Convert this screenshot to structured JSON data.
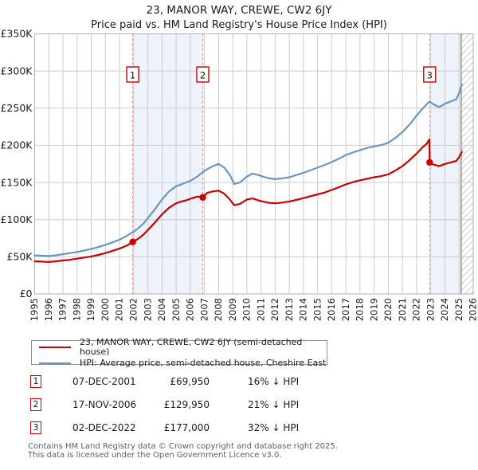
{
  "title": "23, MANOR WAY, CREWE, CW2 6JY",
  "subtitle": "Price paid vs. HM Land Registry's House Price Index (HPI)",
  "colors": {
    "property_line": "#cc0000",
    "hpi_line": "#6a96c6",
    "sale_dash": "#ee8888",
    "grid": "#cccccc",
    "plot_border": "#b0b0b0",
    "band_fill": "#edf2fb",
    "hatch_line": "#cccccc",
    "hatch_edge": "#909090",
    "flag_border": "#cc0000",
    "axis_text": "#1a1a1a",
    "footer_text": "#5f5f5f"
  },
  "chart_data": {
    "type": "line",
    "title": "23, MANOR WAY, CREWE, CW2 6JY",
    "subtitle": "Price paid vs. HM Land Registry's House Price Index (HPI)",
    "xlabel": "",
    "ylabel": "",
    "xlim": [
      1995,
      2026
    ],
    "ylim": [
      0,
      350000
    ],
    "grid": true,
    "legend_position": "below",
    "yticks": [
      0,
      50000,
      100000,
      150000,
      200000,
      250000,
      300000,
      350000
    ],
    "ytick_labels": [
      "£0",
      "£50K",
      "£100K",
      "£150K",
      "£200K",
      "£250K",
      "£300K",
      "£350K"
    ],
    "xticks": [
      1995,
      1996,
      1997,
      1998,
      1999,
      2000,
      2001,
      2002,
      2003,
      2004,
      2005,
      2006,
      2007,
      2008,
      2009,
      2010,
      2011,
      2012,
      2013,
      2014,
      2015,
      2016,
      2017,
      2018,
      2019,
      2020,
      2021,
      2022,
      2023,
      2024,
      2025,
      2026
    ],
    "x": [
      1995,
      1995.5,
      1996,
      1996.5,
      1997,
      1997.5,
      1998,
      1998.5,
      1999,
      1999.5,
      2000,
      2000.5,
      2001,
      2001.5,
      2001.93,
      2002.3,
      2002.7,
      2003,
      2003.5,
      2004,
      2004.5,
      2005,
      2005.3,
      2005.7,
      2006,
      2006.5,
      2006.88,
      2007.2,
      2007.6,
      2008,
      2008.4,
      2008.8,
      2009.1,
      2009.5,
      2010,
      2010.4,
      2010.8,
      2011.2,
      2011.6,
      2012,
      2012.5,
      2013,
      2013.5,
      2014,
      2014.5,
      2015,
      2015.5,
      2016,
      2016.5,
      2017,
      2017.5,
      2018,
      2018.5,
      2019,
      2019.5,
      2020,
      2020.5,
      2021,
      2021.5,
      2022,
      2022.4,
      2022.7,
      2022.9,
      2022.92,
      2023.2,
      2023.6,
      2024,
      2024.4,
      2024.8,
      2025.0,
      2025.2
    ],
    "series": [
      {
        "name": "23, MANOR WAY, CREWE, CW2 6JY (semi-detached house)",
        "color": "#cc0000",
        "values": [
          44000,
          43500,
          43000,
          44000,
          45000,
          46000,
          47500,
          49000,
          50500,
          52500,
          55000,
          58000,
          61000,
          65000,
          69950,
          74000,
          80000,
          86000,
          96000,
          107000,
          116000,
          122000,
          124000,
          126000,
          128000,
          131000,
          129950,
          136000,
          138000,
          139000,
          135000,
          127000,
          119500,
          121000,
          127000,
          128500,
          126000,
          124000,
          122500,
          122000,
          123000,
          124500,
          126500,
          129000,
          131500,
          134000,
          136500,
          140000,
          143500,
          147500,
          150500,
          153000,
          155000,
          157000,
          158500,
          161000,
          166000,
          172000,
          180000,
          189000,
          197000,
          202000,
          208000,
          177000,
          174000,
          172000,
          175000,
          177000,
          179000,
          184000,
          191000
        ]
      },
      {
        "name": "HPI: Average price, semi-detached house, Cheshire East",
        "color": "#6a96c6",
        "values": [
          52000,
          51500,
          51000,
          52000,
          53500,
          55000,
          56500,
          58500,
          60500,
          63000,
          66000,
          69500,
          73000,
          78000,
          83000,
          88000,
          95000,
          102000,
          114000,
          127000,
          138000,
          145000,
          147000,
          150000,
          152000,
          158000,
          164000,
          168000,
          172000,
          175000,
          170000,
          160000,
          148000,
          150000,
          158000,
          162000,
          160000,
          157500,
          155500,
          154500,
          155500,
          157000,
          160000,
          163000,
          166500,
          170000,
          173500,
          177500,
          182000,
          187000,
          190500,
          193500,
          196500,
          198500,
          200500,
          203500,
          210000,
          218000,
          228000,
          240000,
          249000,
          255000,
          259000,
          259000,
          255000,
          251500,
          256000,
          259000,
          262000,
          270000,
          282000
        ]
      }
    ],
    "sales": [
      {
        "n": "1",
        "x": 2001.93,
        "price": 69950
      },
      {
        "n": "2",
        "x": 2006.88,
        "price": 129950
      },
      {
        "n": "3",
        "x": 2022.92,
        "price": 177000
      }
    ],
    "shaded_bands": [
      [
        2001.93,
        2006.88
      ],
      [
        2022.92,
        2025.15
      ]
    ],
    "hatch_region": [
      2025.15,
      2026
    ]
  },
  "legend": {
    "items": [
      {
        "label": "23, MANOR WAY, CREWE, CW2 6JY (semi-detached house)",
        "color": "#cc0000"
      },
      {
        "label": "HPI: Average price, semi-detached house, Cheshire East",
        "color": "#6a96c6"
      }
    ]
  },
  "table": {
    "rows": [
      {
        "num": "1",
        "date": "07-DEC-2001",
        "price": "£69,950",
        "hpi_diff": "16% ↓ HPI"
      },
      {
        "num": "2",
        "date": "17-NOV-2006",
        "price": "£129,950",
        "hpi_diff": "21% ↓ HPI"
      },
      {
        "num": "3",
        "date": "02-DEC-2022",
        "price": "£177,000",
        "hpi_diff": "32% ↓ HPI"
      }
    ]
  },
  "footer": {
    "line1": "Contains HM Land Registry data © Crown copyright and database right 2025.",
    "line2": "This data is licensed under the Open Government Licence v3.0."
  }
}
